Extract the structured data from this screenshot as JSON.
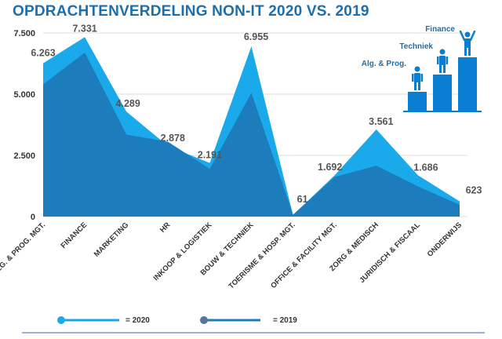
{
  "chart_data": {
    "type": "area",
    "title": "OPDRACHTENVERDELING NON-IT 2020 VS. 2019",
    "categories": [
      "ALG. & PROG. MGT.",
      "FINANCE",
      "MARKETING",
      "HR",
      "INKOOP & LOGISTIEK",
      "BOUW & TECHNIEK",
      "TOERISME & HOSP. MGT.",
      "OFFICE & FACILITY MGT.",
      "ZORG & MEDISCH",
      "JURIDISCH & FISCAAL",
      "ONDERWIJS"
    ],
    "series": [
      {
        "name": "= 2020",
        "color": "#1aa9ea",
        "values": [
          6263,
          7331,
          4289,
          2878,
          2191,
          6955,
          61,
          1692,
          3561,
          1686,
          623
        ],
        "labels": [
          "6.263",
          "7.331",
          "4.289",
          "2.878",
          "2.191",
          "6.955",
          "61",
          "1.692",
          "3.561",
          "1.686",
          "623"
        ]
      },
      {
        "name": "= 2019",
        "color": "#1c7cbc",
        "values": [
          5400,
          6700,
          3350,
          3050,
          1950,
          5050,
          80,
          1620,
          2080,
          1230,
          480
        ]
      }
    ],
    "ylim": [
      0,
      7500
    ],
    "yticks": [
      0,
      2500,
      5000,
      7500
    ],
    "ytick_labels": [
      "0",
      "2.500",
      "5.000",
      "7.500"
    ],
    "grid": true,
    "legend": "bottom"
  },
  "podium": {
    "labels": [
      "Alg. & Prog.",
      "Techniek",
      "Finance"
    ],
    "icon": "podium-people-icon"
  }
}
